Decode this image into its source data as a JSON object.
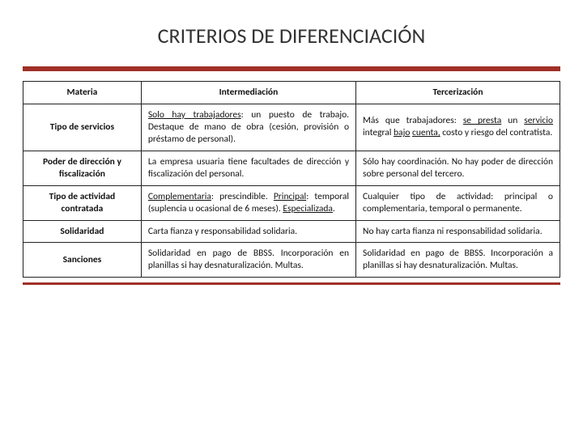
{
  "title": "CRITERIOS DE DIFERENCIACIÓN",
  "accent_color": "#a03028",
  "border_color": "#222222",
  "columns": {
    "h0": "Materia",
    "h1": "Intermediación",
    "h2": "Tercerización"
  },
  "rows": [
    {
      "label": "Tipo de servicios",
      "col1_pre": "Solo hay trabajadores",
      "col1_rest": ": un puesto de trabajo. Destaque de mano de obra (cesión, provisión o préstamo de personal).",
      "col2_a": "Más que trabajadores: ",
      "col2_b": "se presta",
      "col2_c": " un ",
      "col2_d": "servicio",
      "col2_e": " integral ",
      "col2_f": "bajo",
      "col2_g": " ",
      "col2_h": "cuenta,",
      "col2_i": " costo y riesgo del contratista."
    },
    {
      "label": "Poder de dirección y fiscalización",
      "col1": "La empresa usuaria tiene facultades de dirección y fiscalización del personal.",
      "col2": "Sólo hay coordinación. No hay poder de dirección sobre personal del tercero."
    },
    {
      "label": "Tipo de actividad contratada",
      "col1_a": "Complementaria",
      "col1_b": ": prescindible. ",
      "col1_c": "Principal",
      "col1_d": ": temporal (suplencia u ocasional de 6 meses). ",
      "col1_e": "Especializada",
      "col1_f": ".",
      "col2": "Cualquier tipo de actividad: principal o complementaria, temporal o permanente."
    },
    {
      "label": "Solidaridad",
      "col1": "Carta fianza y responsabilidad solidaria.",
      "col2": "No hay carta fianza ni responsabilidad solidaria."
    },
    {
      "label": "Sanciones",
      "col1": "Solidaridad en pago de BBSS. Incorporación en planillas si hay desnaturalización. Multas.",
      "col2": "Solidaridad en pago de BBSS. Incorporación a planillas si hay desnaturalización. Multas."
    }
  ]
}
